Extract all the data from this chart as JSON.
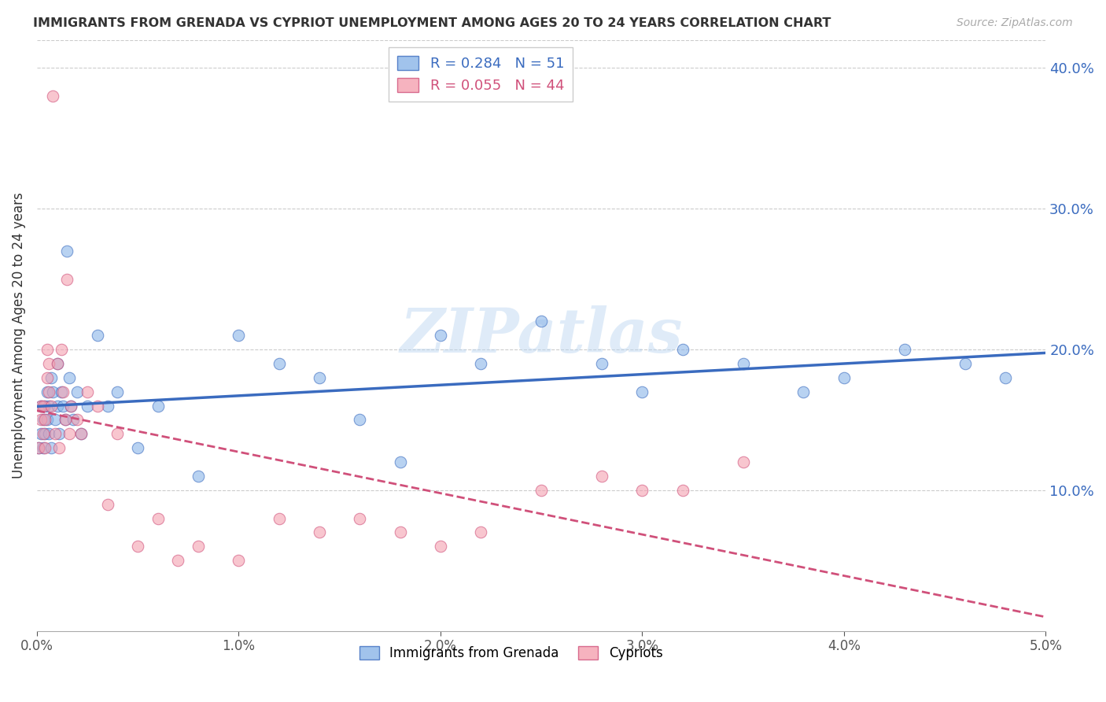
{
  "title": "IMMIGRANTS FROM GRENADA VS CYPRIOT UNEMPLOYMENT AMONG AGES 20 TO 24 YEARS CORRELATION CHART",
  "source": "Source: ZipAtlas.com",
  "ylabel_label": "Unemployment Among Ages 20 to 24 years",
  "xlim": [
    0.0,
    0.05
  ],
  "ylim": [
    0.0,
    0.42
  ],
  "legend1_r": "0.284",
  "legend1_n": "51",
  "legend2_r": "0.055",
  "legend2_n": "44",
  "legend_label1": "Immigrants from Grenada",
  "legend_label2": "Cypriots",
  "color_blue": "#8ab4e8",
  "color_pink": "#f4a0b0",
  "trendline_blue": "#3a6bbf",
  "trendline_pink": "#d0507a",
  "watermark": "ZIPatlas",
  "blue_scatter_x": [
    0.0001,
    0.0002,
    0.0002,
    0.0003,
    0.0003,
    0.0004,
    0.0004,
    0.0005,
    0.0005,
    0.0006,
    0.0006,
    0.0007,
    0.0007,
    0.0008,
    0.0009,
    0.001,
    0.001,
    0.0011,
    0.0012,
    0.0013,
    0.0014,
    0.0015,
    0.0016,
    0.0017,
    0.0018,
    0.002,
    0.0022,
    0.0025,
    0.003,
    0.0035,
    0.004,
    0.005,
    0.006,
    0.008,
    0.01,
    0.012,
    0.014,
    0.016,
    0.018,
    0.02,
    0.022,
    0.025,
    0.028,
    0.03,
    0.032,
    0.035,
    0.038,
    0.04,
    0.043,
    0.046,
    0.048
  ],
  "blue_scatter_y": [
    0.13,
    0.14,
    0.16,
    0.15,
    0.13,
    0.16,
    0.14,
    0.15,
    0.17,
    0.14,
    0.16,
    0.13,
    0.18,
    0.17,
    0.15,
    0.19,
    0.16,
    0.14,
    0.17,
    0.16,
    0.15,
    0.27,
    0.18,
    0.16,
    0.15,
    0.17,
    0.14,
    0.16,
    0.21,
    0.16,
    0.17,
    0.13,
    0.16,
    0.11,
    0.21,
    0.19,
    0.18,
    0.15,
    0.12,
    0.21,
    0.19,
    0.22,
    0.19,
    0.17,
    0.2,
    0.19,
    0.17,
    0.18,
    0.2,
    0.19,
    0.18
  ],
  "pink_scatter_x": [
    0.0001,
    0.0002,
    0.0002,
    0.0003,
    0.0003,
    0.0004,
    0.0004,
    0.0005,
    0.0005,
    0.0006,
    0.0006,
    0.0007,
    0.0008,
    0.0009,
    0.001,
    0.0011,
    0.0012,
    0.0013,
    0.0014,
    0.0015,
    0.0016,
    0.0017,
    0.002,
    0.0022,
    0.0025,
    0.003,
    0.0035,
    0.004,
    0.005,
    0.006,
    0.007,
    0.008,
    0.01,
    0.012,
    0.014,
    0.016,
    0.018,
    0.02,
    0.022,
    0.025,
    0.028,
    0.03,
    0.032,
    0.035
  ],
  "pink_scatter_y": [
    0.13,
    0.15,
    0.16,
    0.14,
    0.16,
    0.15,
    0.13,
    0.2,
    0.18,
    0.17,
    0.19,
    0.16,
    0.38,
    0.14,
    0.19,
    0.13,
    0.2,
    0.17,
    0.15,
    0.25,
    0.14,
    0.16,
    0.15,
    0.14,
    0.17,
    0.16,
    0.09,
    0.14,
    0.06,
    0.08,
    0.05,
    0.06,
    0.05,
    0.08,
    0.07,
    0.08,
    0.07,
    0.06,
    0.07,
    0.1,
    0.11,
    0.1,
    0.1,
    0.12
  ]
}
